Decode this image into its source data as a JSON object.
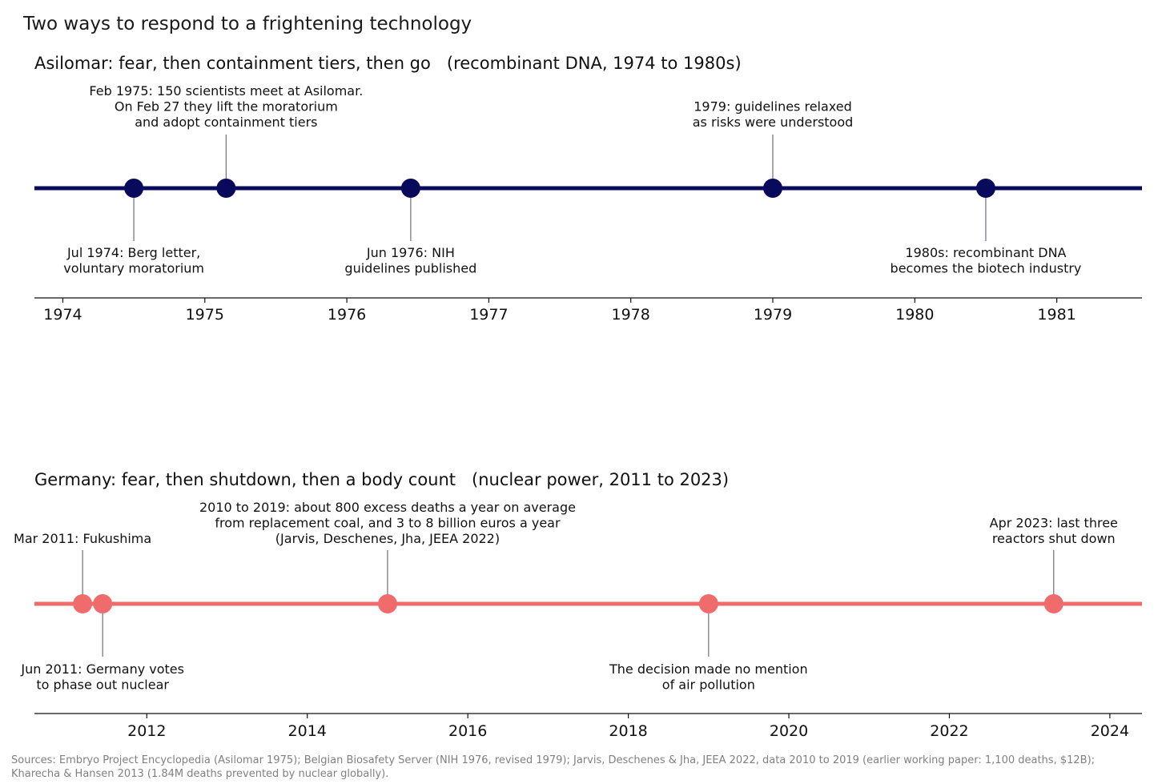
{
  "title": "Two ways to respond to a frightening technology",
  "colors": {
    "asilomar": "#0a0a5c",
    "germany": "#f06b6b",
    "stem": "#6e6e80",
    "axis": "#111111",
    "source": "#808080"
  },
  "chart_data": [
    {
      "type": "timeline",
      "title": "Asilomar: fear, then containment tiers, then go   (recombinant DNA, 1974 to 1980s)",
      "xlim": [
        1973.8,
        1981.6
      ],
      "ticks": [
        "1974",
        "1975",
        "1976",
        "1977",
        "1978",
        "1979",
        "1980",
        "1981"
      ],
      "tick_values": [
        1974,
        1975,
        1976,
        1977,
        1978,
        1979,
        1980,
        1981
      ],
      "events": [
        {
          "x": 1974.5,
          "side": "below",
          "lines": [
            "Jul 1974: Berg letter,",
            "voluntary moratorium"
          ]
        },
        {
          "x": 1975.15,
          "side": "above",
          "lines": [
            "Feb 1975: 150 scientists meet at Asilomar.",
            "On Feb 27 they lift the moratorium",
            "and adopt containment tiers"
          ]
        },
        {
          "x": 1976.45,
          "side": "below",
          "lines": [
            "Jun 1976: NIH",
            "guidelines published"
          ]
        },
        {
          "x": 1979.0,
          "side": "above",
          "lines": [
            "1979: guidelines relaxed",
            "as risks were understood"
          ]
        },
        {
          "x": 1980.5,
          "side": "below",
          "lines": [
            "1980s: recombinant DNA",
            "becomes the biotech industry"
          ]
        }
      ]
    },
    {
      "type": "timeline",
      "title": "Germany: fear, then shutdown, then a body count   (nuclear power, 2011 to 2023)",
      "xlim": [
        2010.6,
        2024.4
      ],
      "ticks": [
        "2012",
        "2014",
        "2016",
        "2018",
        "2020",
        "2022",
        "2024"
      ],
      "tick_values": [
        2012,
        2014,
        2016,
        2018,
        2020,
        2022,
        2024
      ],
      "events": [
        {
          "x": 2011.2,
          "side": "above",
          "lines": [
            "Mar 2011: Fukushima"
          ]
        },
        {
          "x": 2011.45,
          "side": "below",
          "lines": [
            "Jun 2011: Germany votes",
            "to phase out nuclear"
          ]
        },
        {
          "x": 2015.0,
          "side": "above",
          "lines": [
            "2010 to 2019: about 800 excess deaths a year on average",
            "from replacement coal, and 3 to 8 billion euros a year",
            "(Jarvis, Deschenes, Jha, JEEA 2022)"
          ]
        },
        {
          "x": 2019.0,
          "side": "below",
          "lines": [
            "The decision made no mention",
            "of air pollution"
          ]
        },
        {
          "x": 2023.3,
          "side": "above",
          "lines": [
            "Apr 2023: last three",
            "reactors shut down"
          ]
        }
      ]
    }
  ],
  "source_lines": [
    "Sources: Embryo Project Encyclopedia (Asilomar 1975); Belgian Biosafety Server (NIH 1976, revised 1979); Jarvis, Deschenes & Jha, JEEA 2022, data 2010 to 2019 (earlier working paper: 1,100 deaths, $12B);",
    "Kharecha & Hansen 2013 (1.84M deaths prevented by nuclear globally)."
  ]
}
